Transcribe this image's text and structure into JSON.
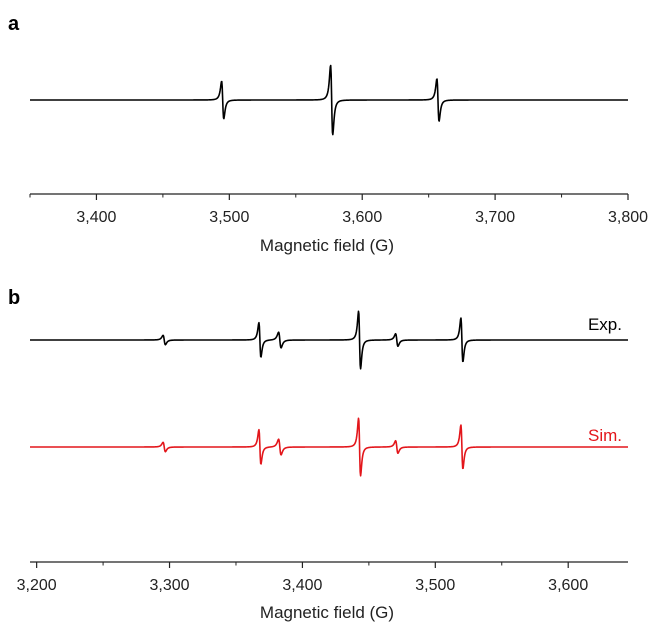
{
  "colors": {
    "exp": "#000000",
    "sim": "#e3161b",
    "axis": "#222222"
  },
  "chart_data": [
    {
      "type": "line",
      "panel": "a",
      "xlabel": "Magnetic field (G)",
      "ylabel": "",
      "xlim": [
        3350,
        3800
      ],
      "x_ticks": [
        3400,
        3500,
        3600,
        3700,
        3800
      ],
      "x_tick_labels": [
        "3,400",
        "3,500",
        "3,600",
        "3,700",
        "3,800"
      ],
      "grid": false,
      "series": [
        {
          "color": "#000000",
          "baseline": 0,
          "lines": [
            {
              "x0": 3495,
              "amp": 0.46,
              "w": 1.4
            },
            {
              "x0": 3577,
              "amp": 0.85,
              "w": 1.4
            },
            {
              "x0": 3657,
              "amp": 0.52,
              "w": 1.4
            }
          ]
        }
      ]
    },
    {
      "type": "line",
      "panel": "b",
      "xlabel": "Magnetic field (G)",
      "ylabel": "",
      "xlim": [
        3195,
        3645
      ],
      "x_ticks": [
        3200,
        3300,
        3400,
        3500,
        3600
      ],
      "x_tick_labels": [
        "3,200",
        "3,300",
        "3,400",
        "3,500",
        "3,600"
      ],
      "grid": false,
      "series": [
        {
          "name": "Exp.",
          "color": "#000000",
          "baseline": 0,
          "lines": [
            {
              "x0": 3296,
              "amp": 0.09,
              "w": 1.5
            },
            {
              "x0": 3368,
              "amp": 0.33,
              "w": 1.3
            },
            {
              "x0": 3383,
              "amp": 0.15,
              "w": 1.6
            },
            {
              "x0": 3443,
              "amp": 0.55,
              "w": 1.3
            },
            {
              "x0": 3471,
              "amp": 0.12,
              "w": 1.5
            },
            {
              "x0": 3520,
              "amp": 0.42,
              "w": 1.3
            }
          ]
        },
        {
          "name": "Sim.",
          "color": "#e3161b",
          "baseline": -1,
          "lines": [
            {
              "x0": 3296,
              "amp": 0.09,
              "w": 1.5
            },
            {
              "x0": 3368,
              "amp": 0.33,
              "w": 1.3
            },
            {
              "x0": 3383,
              "amp": 0.15,
              "w": 1.6
            },
            {
              "x0": 3443,
              "amp": 0.55,
              "w": 1.3
            },
            {
              "x0": 3471,
              "amp": 0.12,
              "w": 1.5
            },
            {
              "x0": 3520,
              "amp": 0.42,
              "w": 1.3
            }
          ]
        }
      ]
    }
  ]
}
